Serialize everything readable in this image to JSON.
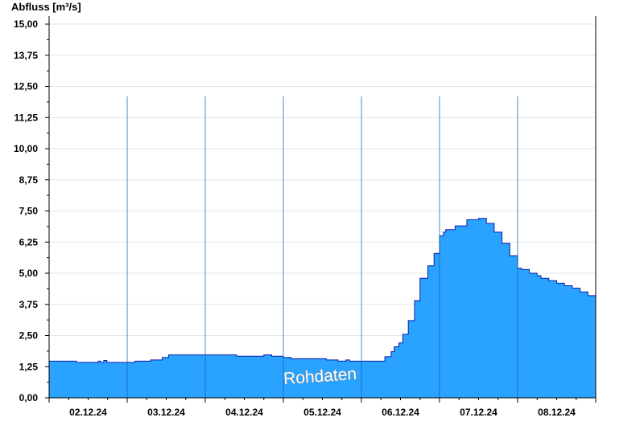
{
  "chart_data": {
    "type": "area",
    "ylabel": "Abfluss [m³/s]",
    "ylim": [
      0,
      15
    ],
    "yticks": [
      "0,00",
      "1,25",
      "2,50",
      "3,75",
      "5,00",
      "6,25",
      "7,50",
      "8,75",
      "10,00",
      "11,25",
      "12,50",
      "13,75",
      "15,00"
    ],
    "categories": [
      "02.12.24",
      "03.12.24",
      "04.12.24",
      "05.12.24",
      "06.12.24",
      "07.12.24",
      "08.12.24"
    ],
    "x_range_days": [
      0,
      7
    ],
    "grid": true,
    "colors": {
      "fill": "#29a3ff",
      "line": "#0a1fa8",
      "grid": "#e6e6e6",
      "daysep": "#1560b0"
    },
    "series": [
      {
        "values": [
          [
            0.0,
            1.47
          ],
          [
            0.33,
            1.47
          ],
          [
            0.35,
            1.42
          ],
          [
            0.62,
            1.42
          ],
          [
            0.63,
            1.47
          ],
          [
            0.66,
            1.42
          ],
          [
            0.7,
            1.5
          ],
          [
            0.74,
            1.42
          ],
          [
            1.0,
            1.42
          ],
          [
            1.1,
            1.47
          ],
          [
            1.3,
            1.52
          ],
          [
            1.45,
            1.62
          ],
          [
            1.53,
            1.72
          ],
          [
            1.9,
            1.72
          ],
          [
            2.4,
            1.67
          ],
          [
            2.7,
            1.67
          ],
          [
            2.75,
            1.72
          ],
          [
            2.85,
            1.67
          ],
          [
            3.0,
            1.62
          ],
          [
            3.1,
            1.57
          ],
          [
            3.55,
            1.52
          ],
          [
            3.7,
            1.47
          ],
          [
            3.8,
            1.52
          ],
          [
            3.85,
            1.47
          ],
          [
            4.2,
            1.47
          ],
          [
            4.3,
            1.65
          ],
          [
            4.38,
            1.85
          ],
          [
            4.42,
            2.05
          ],
          [
            4.48,
            2.2
          ],
          [
            4.53,
            2.55
          ],
          [
            4.6,
            3.1
          ],
          [
            4.68,
            3.9
          ],
          [
            4.75,
            4.8
          ],
          [
            4.85,
            5.3
          ],
          [
            4.93,
            5.8
          ],
          [
            5.0,
            6.5
          ],
          [
            5.05,
            6.65
          ],
          [
            5.08,
            6.75
          ],
          [
            5.2,
            6.9
          ],
          [
            5.35,
            7.15
          ],
          [
            5.5,
            7.2
          ],
          [
            5.6,
            7.0
          ],
          [
            5.7,
            6.65
          ],
          [
            5.8,
            6.2
          ],
          [
            5.9,
            5.7
          ],
          [
            6.0,
            5.2
          ],
          [
            6.05,
            5.15
          ],
          [
            6.15,
            5.0
          ],
          [
            6.25,
            4.9
          ],
          [
            6.3,
            4.8
          ],
          [
            6.4,
            4.7
          ],
          [
            6.5,
            4.6
          ],
          [
            6.6,
            4.5
          ],
          [
            6.7,
            4.4
          ],
          [
            6.8,
            4.25
          ],
          [
            6.9,
            4.1
          ],
          [
            7.0,
            3.85
          ]
        ]
      }
    ],
    "watermark": "Rohdaten"
  }
}
